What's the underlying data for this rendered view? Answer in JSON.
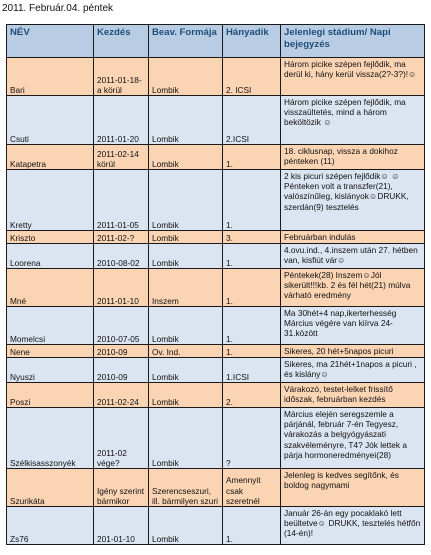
{
  "page": {
    "date_title": "2011. Február.04. péntek"
  },
  "table": {
    "headers": [
      "NÉV",
      "Kezdés",
      "Beav. Formája",
      "Hányadik",
      "Jelenlegi stádium/ Napi bejegyzés"
    ],
    "rows": [
      [
        "Bari",
        "2011-01-18-a körül",
        "Lombik",
        "2. ICSI",
        " Három picike szépen fejlődik, ma derül ki, hány kerül vissza(2?-3?)!☺"
      ],
      [
        "Csuti",
        "2011-01-20",
        "Lombik",
        "2.ICSI",
        "Három picike szépen fejlődik, ma visszaültetés, mind a három beköltözik ☺"
      ],
      [
        "Katapetra",
        "2011-02-14 körül",
        "Lombik",
        "1.",
        "18. ciklusnap, vissza a dokihoz pénteken (11)"
      ],
      [
        "Kretty",
        "2011-01-05",
        "Lombik",
        "1.",
        "2 kis picuri szépen fejlődik☺ ☺Pénteken volt a transzfer(21), valószínűleg, kislányok☺DRUKK, szerdán(9) tesztelés"
      ],
      [
        "Kriszto",
        "2011-02-?",
        "Lombik",
        "3.",
        "Februárban indulás"
      ],
      [
        "Loorena",
        "2010-08-02",
        "Lombik",
        "1.",
        "4.ovu.ind., 4.inszem után 27. hétben van, kisfiút vár☺"
      ],
      [
        "Mné",
        "2011-01-10",
        "Inszem",
        "1.",
        "Péntekek(28) Inszem☺Jól sikerült!!!kb. 2 és fél hét(21) múlva várható eredmény"
      ],
      [
        "Momelcsi",
        "2010-07-05",
        "Lombik",
        "1.",
        "Ma 30hét+4 nap,ikerterhesség Március végére van kiírva 24-31.között"
      ],
      [
        "Nene",
        "2010-09",
        "Ov. Ind.",
        "1.",
        "Sikeres, 20 hét+5napos picuri"
      ],
      [
        "Nyuszi",
        "2010-09",
        "Lombik",
        "1.ICSI",
        "Sikeres, ma 21hét+1napos a picuri , és kislány☺"
      ],
      [
        "Poszi",
        "2011-02-24",
        "Lombik",
        "2.",
        "Várakozó, testet-lelket frissítő időszak, februárban kezdés"
      ],
      [
        "Szélkisasszonyék",
        "2011-02 vége?",
        "Lombik",
        "?",
        "Március elején seregszemle a párjánál, február 7-én Tegyesz, várakozás a belgyógyászati szakvéleményre, T4? Jók lettek a párja hormoneredményei(28)"
      ],
      [
        "Szurikáta",
        "Igény szerint bármikor",
        "Szerencseszuri, ill. bármilyen szuri",
        "Amennyit csak szeretnél",
        "Jelenleg is kedves segítőnk, és boldog nagymami"
      ],
      [
        "Zs76",
        "201-01-10",
        "Lombik",
        "1.",
        "Január 26-án egy pocaklakó lett beültetve☺ DRUKK, tesztelés hétfőn (14-én)!"
      ]
    ]
  }
}
